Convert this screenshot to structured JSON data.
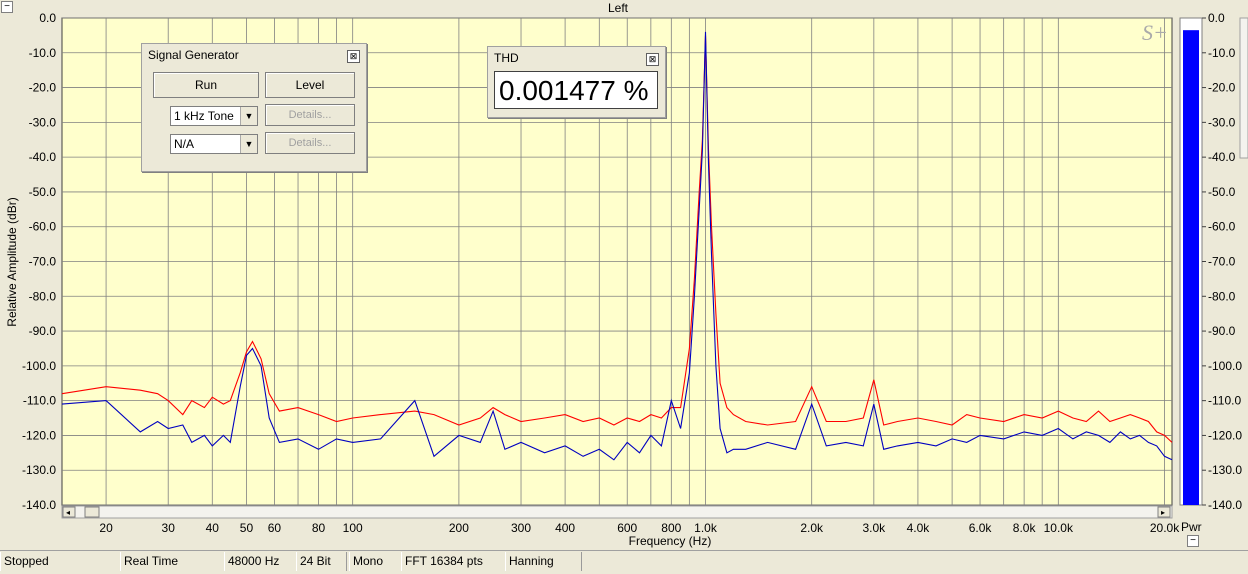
{
  "window": {
    "title": "Left",
    "minimize_glyph": "−"
  },
  "chart_data": {
    "type": "line",
    "ylabel": "Relative Amplitude (dBr)",
    "xlabel": "Frequency (Hz)",
    "x_scale": "log",
    "xlim": [
      15,
      21000
    ],
    "ylim": [
      -140,
      0
    ],
    "y_ticks": [
      "0.0",
      "-10.0",
      "-20.0",
      "-30.0",
      "-40.0",
      "-50.0",
      "-60.0",
      "-70.0",
      "-80.0",
      "-90.0",
      "-100.0",
      "-110.0",
      "-120.0",
      "-130.0",
      "-140.0"
    ],
    "x_ticks": [
      {
        "v": 20,
        "l": "20"
      },
      {
        "v": 30,
        "l": "30"
      },
      {
        "v": 40,
        "l": "40"
      },
      {
        "v": 50,
        "l": "50"
      },
      {
        "v": 60,
        "l": "60"
      },
      {
        "v": 80,
        "l": "80"
      },
      {
        "v": 100,
        "l": "100"
      },
      {
        "v": 200,
        "l": "200"
      },
      {
        "v": 300,
        "l": "300"
      },
      {
        "v": 400,
        "l": "400"
      },
      {
        "v": 600,
        "l": "600"
      },
      {
        "v": 800,
        "l": "800"
      },
      {
        "v": 1000,
        "l": "1.0k"
      },
      {
        "v": 2000,
        "l": "2.0k"
      },
      {
        "v": 3000,
        "l": "3.0k"
      },
      {
        "v": 4000,
        "l": "4.0k"
      },
      {
        "v": 6000,
        "l": "6.0k"
      },
      {
        "v": 8000,
        "l": "8.0k"
      },
      {
        "v": 10000,
        "l": "10.0k"
      },
      {
        "v": 20000,
        "l": "20.0k"
      }
    ],
    "grid": true,
    "background": "#ffffcc",
    "series": [
      {
        "color": "#ff0000",
        "x": [
          15,
          20,
          25,
          28,
          30,
          33,
          35,
          38,
          40,
          43,
          45,
          48,
          50,
          52,
          55,
          58,
          62,
          70,
          80,
          90,
          100,
          120,
          150,
          170,
          200,
          230,
          250,
          270,
          300,
          350,
          400,
          450,
          500,
          550,
          600,
          650,
          700,
          750,
          800,
          850,
          900,
          930,
          960,
          980,
          1000,
          1020,
          1040,
          1070,
          1100,
          1150,
          1200,
          1300,
          1500,
          1800,
          2000,
          2200,
          2500,
          2800,
          3000,
          3200,
          3500,
          4000,
          4500,
          5000,
          5500,
          6000,
          7000,
          8000,
          9000,
          10000,
          11000,
          12000,
          13000,
          14000,
          15000,
          16000,
          17000,
          18000,
          19000,
          20000,
          21000
        ],
        "y": [
          -108,
          -106,
          -107,
          -108,
          -110,
          -114,
          -110,
          -112,
          -109,
          -111,
          -110,
          -102,
          -96,
          -93,
          -98,
          -108,
          -113,
          -112,
          -114,
          -116,
          -115,
          -114,
          -113,
          -114,
          -117,
          -115,
          -112,
          -114,
          -116,
          -115,
          -114,
          -116,
          -115,
          -117,
          -115,
          -116,
          -114,
          -115,
          -112,
          -112,
          -95,
          -75,
          -50,
          -35,
          -5,
          -38,
          -60,
          -85,
          -105,
          -112,
          -114,
          -116,
          -117,
          -116,
          -106,
          -116,
          -116,
          -115,
          -104,
          -117,
          -116,
          -115,
          -116,
          -117,
          -114,
          -115,
          -116,
          -114,
          -115,
          -113,
          -115,
          -116,
          -113,
          -116,
          -115,
          -114,
          -115,
          -116,
          -119,
          -120,
          -122
        ]
      },
      {
        "color": "#0000c0",
        "x": [
          15,
          20,
          25,
          28,
          30,
          33,
          35,
          38,
          40,
          43,
          45,
          48,
          50,
          52,
          55,
          58,
          62,
          70,
          80,
          90,
          100,
          120,
          150,
          170,
          200,
          230,
          250,
          270,
          300,
          350,
          400,
          450,
          500,
          550,
          600,
          650,
          700,
          750,
          800,
          850,
          900,
          930,
          960,
          980,
          1000,
          1020,
          1040,
          1070,
          1100,
          1150,
          1200,
          1300,
          1500,
          1800,
          2000,
          2200,
          2500,
          2800,
          3000,
          3200,
          3500,
          4000,
          4500,
          5000,
          5500,
          6000,
          7000,
          8000,
          9000,
          10000,
          11000,
          12000,
          13000,
          14000,
          15000,
          16000,
          17000,
          18000,
          19000,
          20000,
          21000
        ],
        "y": [
          -111,
          -110,
          -119,
          -116,
          -118,
          -117,
          -122,
          -120,
          -123,
          -120,
          -122,
          -106,
          -97,
          -95,
          -100,
          -115,
          -122,
          -121,
          -124,
          -121,
          -122,
          -121,
          -110,
          -126,
          -120,
          -122,
          -113,
          -124,
          -122,
          -125,
          -123,
          -126,
          -124,
          -127,
          -122,
          -125,
          -120,
          -123,
          -110,
          -118,
          -102,
          -80,
          -55,
          -38,
          -4,
          -42,
          -68,
          -100,
          -118,
          -125,
          -124,
          -124,
          -122,
          -124,
          -111,
          -123,
          -122,
          -123,
          -111,
          -124,
          -123,
          -122,
          -123,
          -121,
          -122,
          -120,
          -121,
          -119,
          -120,
          -118,
          -121,
          -119,
          -120,
          -122,
          -119,
          -121,
          -120,
          -122,
          -123,
          -126,
          -127
        ]
      }
    ],
    "level_meter": {
      "value_db": -3.5,
      "color": "#0000ff",
      "label": "Pwr",
      "ticks": [
        "0.0",
        "-10.0",
        "-20.0",
        "-30.0",
        "-40.0",
        "-50.0",
        "-60.0",
        "-70.0",
        "-80.0",
        "-90.0",
        "-100.0",
        "-110.0",
        "-120.0",
        "-130.0",
        "-140.0"
      ]
    }
  },
  "signal_generator": {
    "title": "Signal Generator",
    "run_label": "Run",
    "level_label": "Level",
    "source1_value": "1 kHz Tone",
    "details1_label": "Details...",
    "source2_value": "N/A",
    "details2_label": "Details..."
  },
  "thd": {
    "title": "THD",
    "value": "0.001477 %"
  },
  "logo_text": "S+",
  "status": {
    "state": "Stopped",
    "mode": "Real Time",
    "rate": "48000 Hz",
    "bits": "24 Bit",
    "channels": "Mono",
    "fft": "FFT 16384 pts",
    "window": "Hanning"
  }
}
